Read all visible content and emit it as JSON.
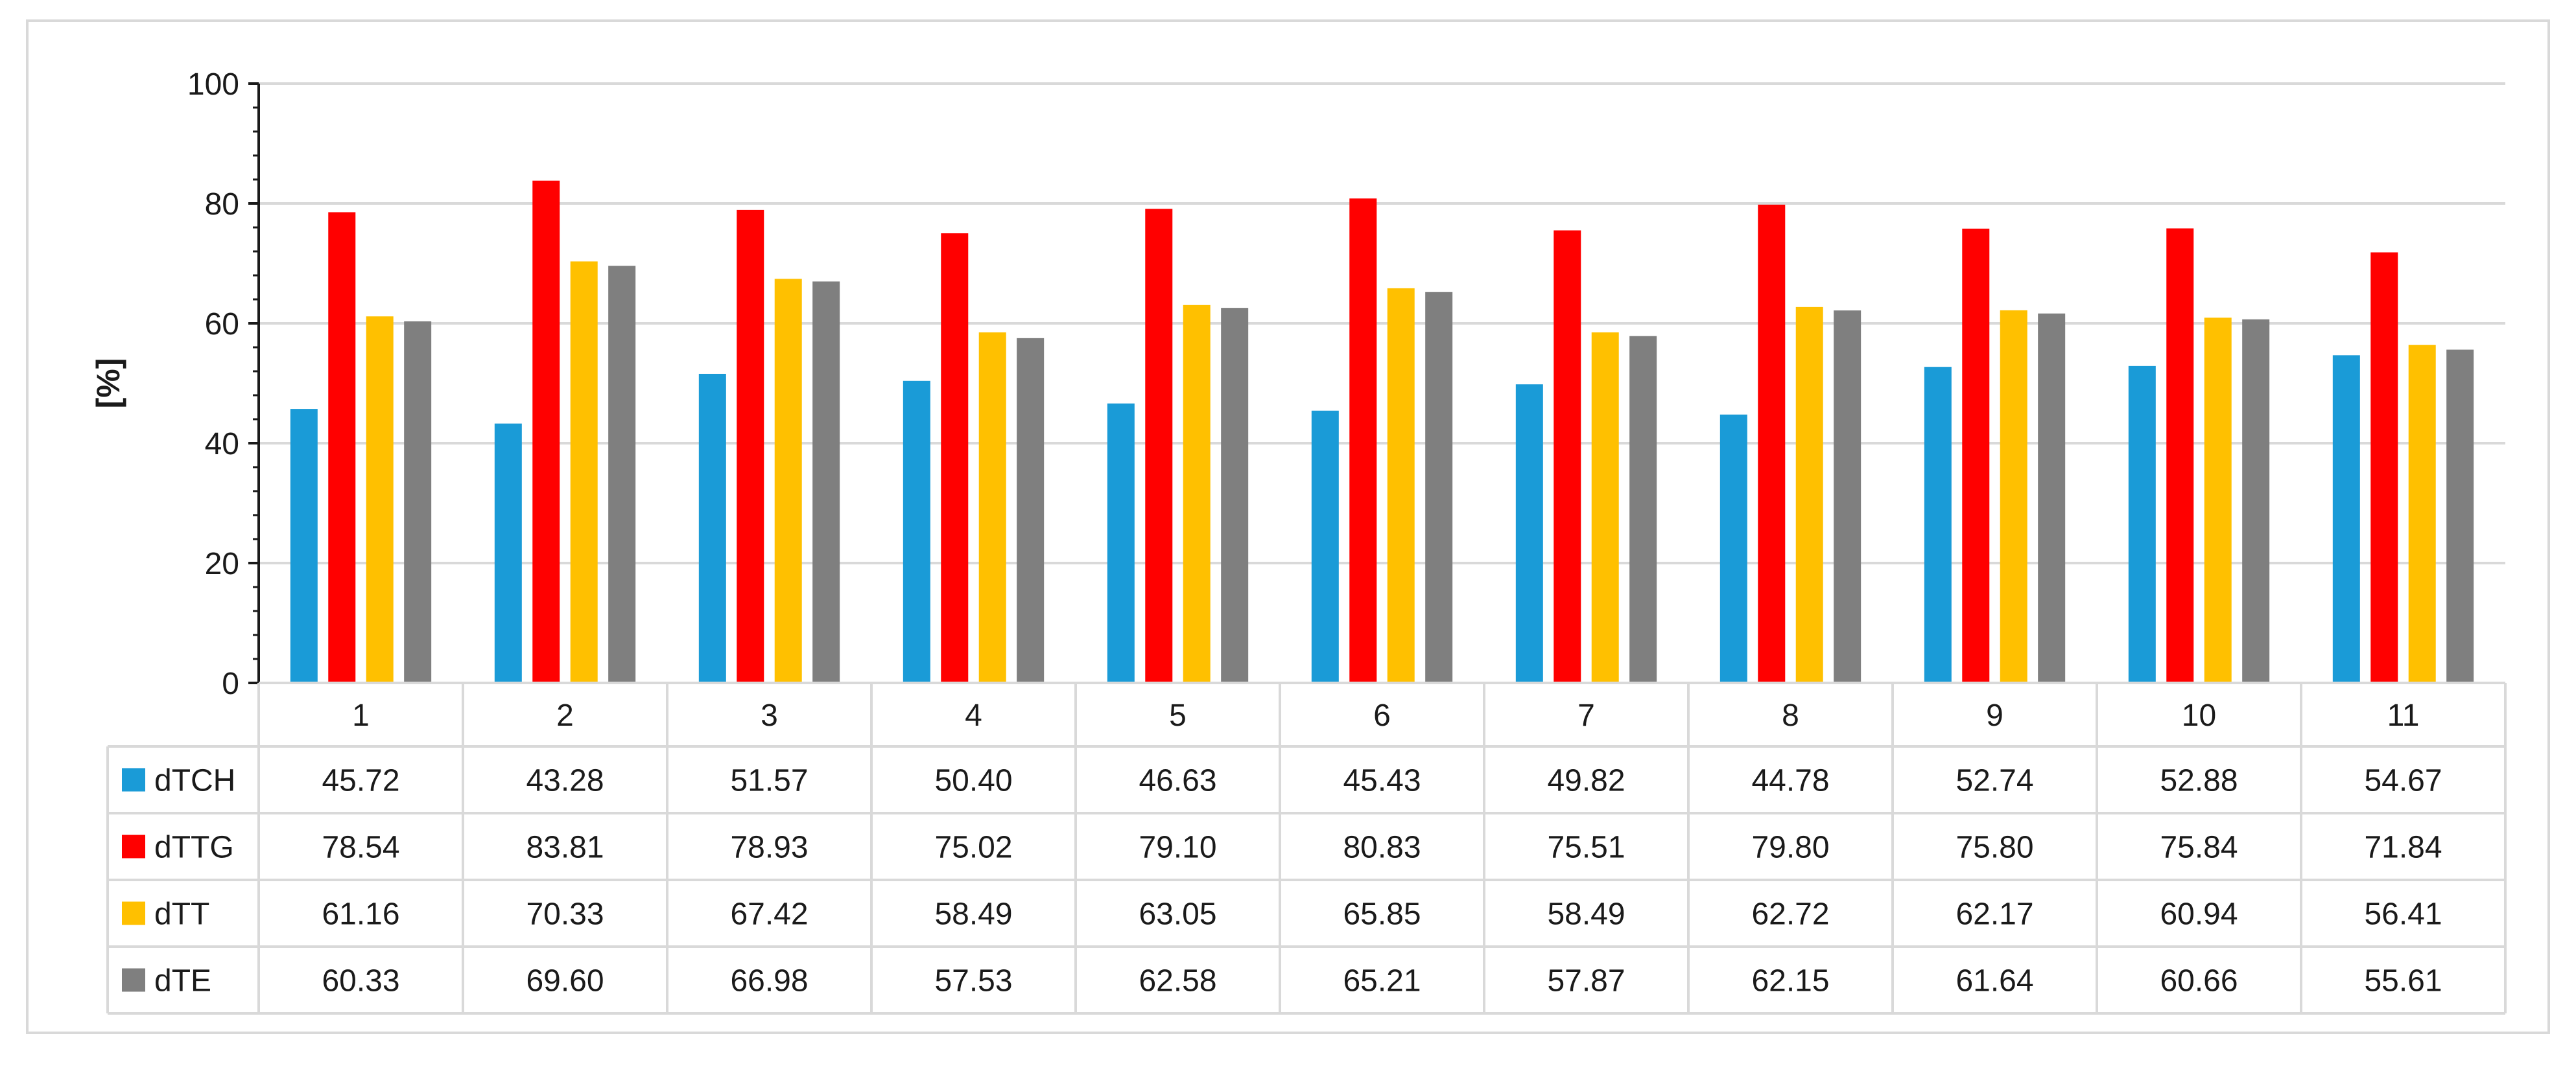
{
  "chart_data": {
    "type": "bar",
    "title": "",
    "xlabel": "",
    "ylabel": "[%]",
    "ylim": [
      0,
      100
    ],
    "yticks": [
      0,
      20,
      40,
      60,
      80,
      100
    ],
    "grid": true,
    "legend": "data-table-left",
    "categories": [
      "1",
      "2",
      "3",
      "4",
      "5",
      "6",
      "7",
      "8",
      "9",
      "10",
      "11"
    ],
    "series": [
      {
        "name": "dTCH",
        "color": "#1a9bd7",
        "values": [
          45.72,
          43.28,
          51.57,
          50.4,
          46.63,
          45.43,
          49.82,
          44.78,
          52.74,
          52.88,
          54.67
        ],
        "labels": [
          "45.72",
          "43.28",
          "51.57",
          "50.40",
          "46.63",
          "45.43",
          "49.82",
          "44.78",
          "52.74",
          "52.88",
          "54.67"
        ]
      },
      {
        "name": "dTTG",
        "color": "#ff0000",
        "values": [
          78.54,
          83.81,
          78.93,
          75.02,
          79.1,
          80.83,
          75.51,
          79.8,
          75.8,
          75.84,
          71.84
        ],
        "labels": [
          "78.54",
          "83.81",
          "78.93",
          "75.02",
          "79.10",
          "80.83",
          "75.51",
          "79.80",
          "75.80",
          "75.84",
          "71.84"
        ]
      },
      {
        "name": "dTT",
        "color": "#ffc000",
        "values": [
          61.16,
          70.33,
          67.42,
          58.49,
          63.05,
          65.85,
          58.49,
          62.72,
          62.17,
          60.94,
          56.41
        ],
        "labels": [
          "61.16",
          "70.33",
          "67.42",
          "58.49",
          "63.05",
          "65.85",
          "58.49",
          "62.72",
          "62.17",
          "60.94",
          "56.41"
        ]
      },
      {
        "name": "dTE",
        "color": "#7f7f7f",
        "values": [
          60.33,
          69.6,
          66.98,
          57.53,
          62.58,
          65.21,
          57.87,
          62.15,
          61.64,
          60.66,
          55.61
        ],
        "labels": [
          "60.33",
          "69.60",
          "66.98",
          "57.53",
          "62.58",
          "65.21",
          "57.87",
          "62.15",
          "61.64",
          "60.66",
          "55.61"
        ]
      }
    ]
  }
}
